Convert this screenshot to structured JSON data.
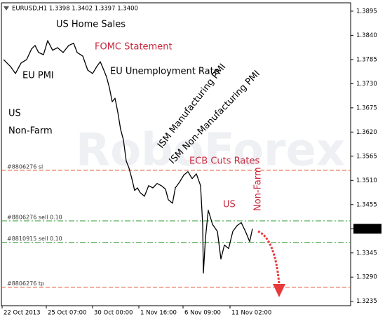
{
  "chart_data": {
    "type": "line",
    "title": "EURUSD,H1  1.3398 1.3402 1.3397 1.3400",
    "watermark": "RoboForex",
    "xlim": [
      0,
      498
    ],
    "xticks": [
      {
        "value": 1,
        "label": "22 Oct 2013"
      },
      {
        "value": 64,
        "label": "25 Oct 07:00"
      },
      {
        "value": 130,
        "label": "30 Oct 00:00"
      },
      {
        "value": 196,
        "label": "1 Nov 16:00"
      },
      {
        "value": 259,
        "label": "6 Nov 09:00"
      },
      {
        "value": 326,
        "label": "11 Nov 02:00"
      }
    ],
    "ylim": [
      1.3225,
      1.3914
    ],
    "yticks": [
      1.3895,
      {
        "value": 1.384,
        "label": "1.3840"
      },
      1.3785,
      {
        "value": 1.373,
        "label": "1.3730"
      },
      1.3675,
      {
        "value": 1.362,
        "label": "1.3620"
      },
      1.3565,
      {
        "value": 1.351,
        "label": "1.3510"
      },
      1.3455,
      {
        "value": 1.34,
        "label": "1.3400"
      },
      1.3345,
      {
        "value": 1.329,
        "label": "1.3290"
      },
      1.3235
    ],
    "series": [
      {
        "name": "EURUSD",
        "color": "#000000",
        "x": [
          3,
          13,
          20,
          28,
          36,
          43,
          48,
          53,
          60,
          66,
          73,
          80,
          88,
          96,
          103,
          108,
          116,
          123,
          130,
          136,
          141,
          146,
          150,
          154,
          158,
          162,
          166,
          170,
          174,
          178,
          182,
          186,
          190,
          194,
          198,
          204,
          210,
          216,
          222,
          228,
          234,
          238,
          244,
          248,
          254,
          260,
          266,
          272,
          278,
          284,
          287,
          288,
          291,
          295,
          301,
          308,
          313,
          318,
          324,
          330,
          336,
          342,
          348,
          354,
          358
        ],
        "values": [
          1.3785,
          1.3769,
          1.3753,
          1.3777,
          1.3785,
          1.3809,
          1.3817,
          1.3801,
          1.3796,
          1.3828,
          1.3806,
          1.3812,
          1.3801,
          1.3817,
          1.3822,
          1.3801,
          1.3793,
          1.3761,
          1.3753,
          1.3769,
          1.378,
          1.3761,
          1.3745,
          1.3721,
          1.3689,
          1.3697,
          1.3665,
          1.3626,
          1.3602,
          1.3554,
          1.3538,
          1.3514,
          1.3487,
          1.3493,
          1.3482,
          1.3474,
          1.3498,
          1.3493,
          1.3503,
          1.3498,
          1.349,
          1.3466,
          1.3458,
          1.3493,
          1.3506,
          1.3522,
          1.353,
          1.3514,
          1.3525,
          1.3498,
          1.341,
          1.3299,
          1.3379,
          1.3442,
          1.341,
          1.3394,
          1.3331,
          1.3363,
          1.3355,
          1.3394,
          1.3407,
          1.3414,
          1.3394,
          1.3371,
          1.34
        ]
      }
    ],
    "levels": [
      {
        "label": "#8806276 sl",
        "value": 1.3533,
        "color": "#e0502a",
        "dash": "6,3"
      },
      {
        "label": "#8806276 sell 0.10",
        "value": 1.3418,
        "color": "#2e9a2e",
        "dash": "8,3,2,3"
      },
      {
        "label": "#8810915 sell 0.10",
        "value": 1.3369,
        "color": "#2e9a2e",
        "dash": "8,3,2,3"
      },
      {
        "label": "#8806276 tp",
        "value": 1.3267,
        "color": "#e0502a",
        "dash": "6,3"
      }
    ],
    "annotations": [
      "US Home Sales",
      "FOMC Statement",
      "EU PMI",
      "EU Unemployment Rate",
      "US",
      "Non-Farm",
      "ISM Manufacturing PMI",
      "ISM Non-Manufacturing PMI",
      "ECB Cuts Rates",
      "US",
      "Non-Farm"
    ]
  }
}
